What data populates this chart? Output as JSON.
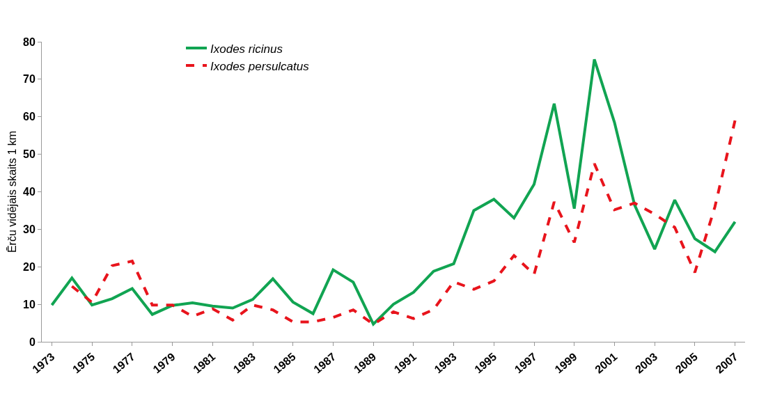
{
  "chart_data": {
    "type": "line",
    "ylabel": "Ērču vidējais skaits 1 km",
    "categories": [
      "1973",
      null,
      "1975",
      null,
      "1977",
      null,
      "1979",
      null,
      "1981",
      null,
      "1983",
      null,
      "1985",
      null,
      "1987",
      null,
      "1989",
      null,
      "1991",
      null,
      "1993",
      null,
      "1995",
      null,
      "1997",
      null,
      "1999",
      null,
      "2001",
      null,
      "2003",
      null,
      "2005",
      null,
      "2007"
    ],
    "series": [
      {
        "name": "Ixodes ricinus",
        "color": "#11a452",
        "line_style": "solid",
        "values": [
          9.8,
          17,
          9.8,
          11.5,
          14.2,
          7.3,
          9.7,
          10.4,
          9.5,
          9,
          11.3,
          16.8,
          10.6,
          7.5,
          19.2,
          15.9,
          4.7,
          10,
          13.2,
          18.8,
          20.8,
          35,
          38,
          33,
          42,
          63.5,
          35.5,
          75.3,
          58.5,
          36.5,
          24.7,
          37.8,
          27.5,
          24,
          32
        ]
      },
      {
        "name": "Ixodes persulcatus",
        "color": "#e8141c",
        "line_style": "dashed",
        "values": [
          null,
          14.8,
          10.5,
          20.3,
          21.5,
          9.8,
          9.8,
          6.8,
          8.8,
          5.8,
          9.8,
          8.5,
          5.3,
          5.3,
          6.5,
          8.5,
          4.7,
          8,
          6.2,
          8.6,
          16,
          14,
          16.2,
          23,
          18,
          37.3,
          26.5,
          47.5,
          35.2,
          37,
          34,
          30.5,
          18.5,
          36,
          59
        ]
      }
    ],
    "ylim": [
      0,
      80
    ],
    "yticks": [
      0,
      10,
      20,
      30,
      40,
      50,
      60,
      70,
      80
    ],
    "grid": false,
    "legend": "top left",
    "marker": "none"
  }
}
